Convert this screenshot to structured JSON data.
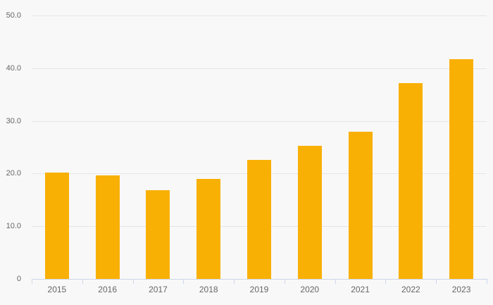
{
  "chart_data": {
    "type": "bar",
    "title": "",
    "xlabel": "",
    "ylabel": "",
    "categories": [
      "2015",
      "2016",
      "2017",
      "2018",
      "2019",
      "2020",
      "2021",
      "2022",
      "2023"
    ],
    "values": [
      20.2,
      19.7,
      16.8,
      19.0,
      22.6,
      25.3,
      27.9,
      37.1,
      41.7
    ],
    "ylim": [
      0,
      50
    ],
    "ytick_interval": 10,
    "yticks": [
      {
        "value": 0,
        "label": "0"
      },
      {
        "value": 10,
        "label": "10.0"
      },
      {
        "value": 20,
        "label": "20.0"
      },
      {
        "value": 30,
        "label": "30.0"
      },
      {
        "value": 40,
        "label": "40.0"
      },
      {
        "value": 50,
        "label": "50.0"
      }
    ],
    "grid": true,
    "legend": false
  },
  "colors": {
    "bar": "#f9b005",
    "background": "#f8f8f8",
    "gridline": "#e6e6e6",
    "axis_line": "#ccd6eb",
    "label_text": "#666666"
  }
}
